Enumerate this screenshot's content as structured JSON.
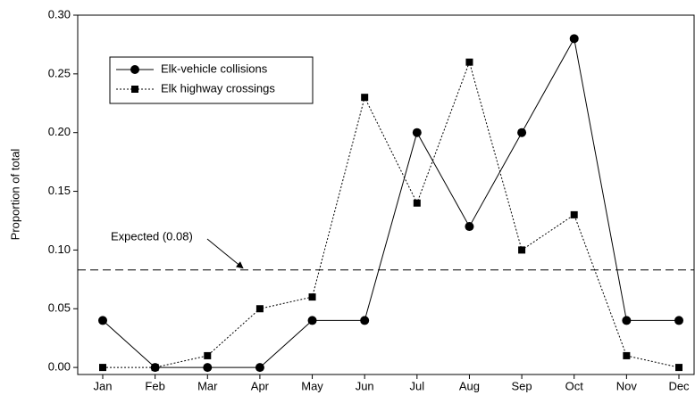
{
  "chart_data": {
    "type": "line",
    "y_label": "Proportion of total",
    "categories": [
      "Jan",
      "Feb",
      "Mar",
      "Apr",
      "May",
      "Jun",
      "Jul",
      "Aug",
      "Sep",
      "Oct",
      "Nov",
      "Dec"
    ],
    "series": [
      {
        "name": "Elk-vehicle collisions",
        "color": "#000000",
        "marker": "circle",
        "dash": "solid",
        "values": [
          0.04,
          0,
          0,
          0,
          0.04,
          0.04,
          0.2,
          0.12,
          0.2,
          0.28,
          0.04,
          0.04
        ]
      },
      {
        "name": "Elk highway crossings",
        "color": "#000000",
        "marker": "square",
        "dash": "dotted",
        "values": [
          0,
          0,
          0.01,
          0.05,
          0.06,
          0.23,
          0.14,
          0.26,
          0.1,
          0.13,
          0.01,
          0
        ]
      }
    ],
    "reference_line": {
      "value": 0.083,
      "label": "Expected (0.08)"
    },
    "ylim": [
      -0.006,
      0.3
    ],
    "yticks": [
      {
        "value": 0,
        "label": "0.00"
      },
      {
        "value": 0.05,
        "label": "0.05"
      },
      {
        "value": 0.1,
        "label": "0.10"
      },
      {
        "value": 0.15,
        "label": "0.15"
      },
      {
        "value": 0.2,
        "label": "0.20"
      },
      {
        "value": 0.25,
        "label": "0.25"
      },
      {
        "value": 0.3,
        "label": "0.30"
      }
    ],
    "legend": "upper left"
  }
}
